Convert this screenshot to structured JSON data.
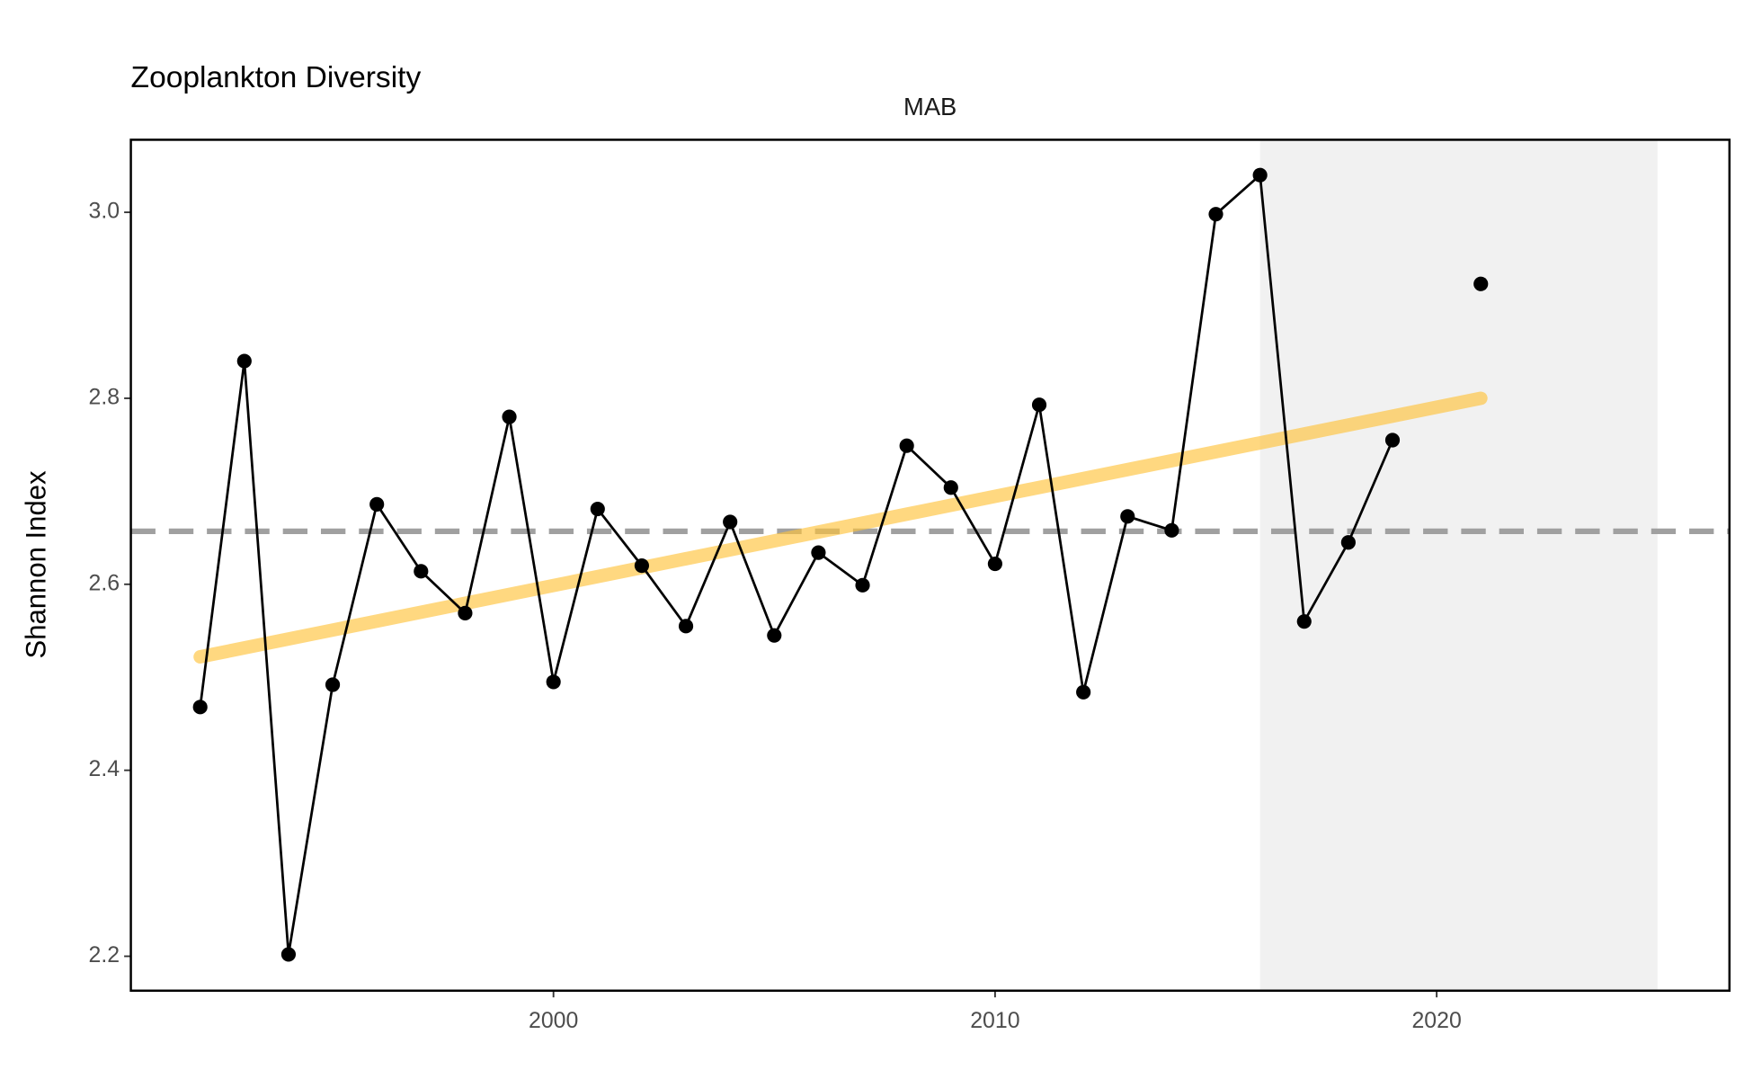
{
  "chart_data": {
    "type": "line",
    "title": "Zooplankton Diversity",
    "facet_label": "MAB",
    "y_label": "Shannon Index",
    "x": [
      1992,
      1993,
      1994,
      1995,
      1996,
      1997,
      1998,
      1999,
      2000,
      2001,
      2002,
      2003,
      2004,
      2005,
      2006,
      2007,
      2008,
      2009,
      2010,
      2011,
      2012,
      2013,
      2014,
      2015,
      2016,
      2017,
      2018,
      2019,
      2020,
      2021
    ],
    "series": [
      {
        "color": "#000000",
        "values": [
          2.468,
          2.84,
          2.202,
          2.492,
          2.686,
          2.614,
          2.569,
          2.78,
          2.495,
          2.681,
          2.62,
          2.555,
          2.667,
          2.545,
          2.634,
          2.599,
          2.749,
          2.704,
          2.622,
          2.793,
          2.484,
          2.673,
          2.658,
          2.998,
          3.04,
          2.56,
          2.645,
          2.755,
          null,
          2.923
        ]
      }
    ],
    "trend": {
      "x": [
        1992,
        2021
      ],
      "values": [
        2.522,
        2.8
      ],
      "color": "#ffc43d"
    },
    "mean_line": {
      "value": 2.657,
      "color": "#a0a0a0"
    },
    "shade": {
      "x": [
        2016,
        2025
      ],
      "color": "#f1f1f1"
    },
    "xlim": [
      1990.43,
      2026.63
    ],
    "ylim": [
      2.163,
      3.078
    ],
    "xticks": [
      2000,
      2010,
      2020
    ],
    "yticks": [
      2.2,
      2.4,
      2.6,
      2.8,
      {
        "value": 3,
        "label": "3.0"
      }
    ]
  }
}
